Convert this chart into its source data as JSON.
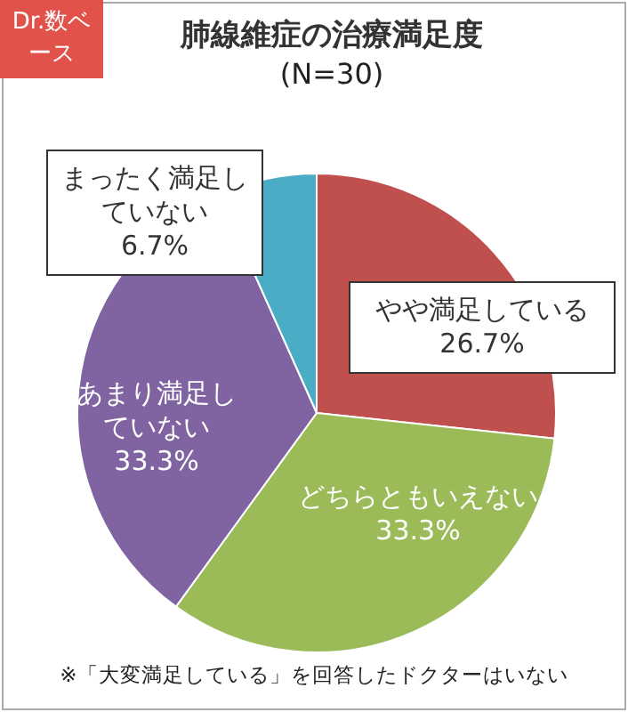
{
  "chart_data": {
    "type": "pie",
    "title": "肺線維症の治療満足度",
    "subtitle": "(N=30)",
    "categories": [
      "やや満足している",
      "どちらともいえない",
      "あまり満足していない",
      "まったく満足していない"
    ],
    "values": [
      26.7,
      33.3,
      33.3,
      6.7
    ],
    "colors": [
      "#c0504d",
      "#9bbb59",
      "#8064a2",
      "#4bacc6"
    ],
    "value_labels": [
      "26.7%",
      "33.3%",
      "33.3%",
      "6.7%"
    ],
    "legend": false,
    "annotations": [
      "Dr.数ベース",
      "※「大変満足している」を回答したドクターはいない"
    ]
  }
}
